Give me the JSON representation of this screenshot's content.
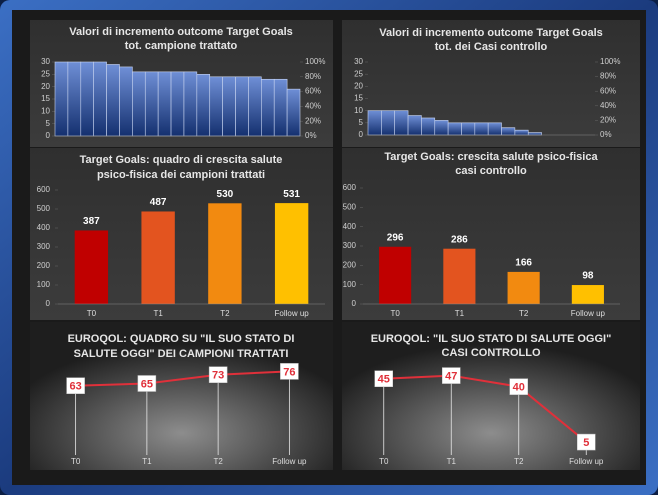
{
  "chart_data": [
    {
      "type": "histbar",
      "title": "Valori di incremento outcome Target Goals",
      "subtitle": "tot. campione trattato",
      "color": "#2b4f9e",
      "values": [
        30,
        30,
        30,
        30,
        29,
        28,
        26,
        26,
        26,
        26,
        26,
        25,
        24,
        24,
        24,
        24,
        23,
        23,
        19
      ],
      "ylim": [
        0,
        30
      ],
      "yticks": [
        0,
        5,
        10,
        15,
        20,
        25,
        30
      ],
      "y2lim": [
        0,
        100
      ],
      "y2ticks": [
        {
          "value": 0,
          "label": "0%"
        },
        {
          "value": 20,
          "label": "20%"
        },
        {
          "value": 40,
          "label": "40%"
        },
        {
          "value": 60,
          "label": "60%"
        },
        {
          "value": 80,
          "label": "80%"
        },
        {
          "value": 100,
          "label": "100%"
        }
      ]
    },
    {
      "type": "histbar",
      "title": "Valori di incremento outcome Target Goals",
      "subtitle": "tot. dei Casi  controllo",
      "color": "#2b4f9e",
      "values": [
        10,
        10,
        10,
        8,
        7,
        6,
        5,
        5,
        5,
        5,
        3,
        2,
        1,
        0,
        0,
        0,
        0
      ],
      "ylim": [
        0,
        30
      ],
      "yticks": [
        0,
        5,
        10,
        15,
        20,
        25,
        30
      ],
      "y2lim": [
        0,
        100
      ],
      "y2ticks": [
        {
          "value": 0,
          "label": "0%"
        },
        {
          "value": 20,
          "label": "20%"
        },
        {
          "value": 40,
          "label": "40%"
        },
        {
          "value": 60,
          "label": "60%"
        },
        {
          "value": 80,
          "label": "80%"
        },
        {
          "value": 100,
          "label": "100%"
        }
      ]
    },
    {
      "type": "bar",
      "title": "Target Goals: quadro di crescita salute",
      "subtitle": "psico-fisica dei campioni trattati",
      "categories": [
        "T0",
        "T1",
        "T2",
        "Follow up"
      ],
      "values": [
        387,
        487,
        530,
        531
      ],
      "colors": [
        "#c00000",
        "#e3541f",
        "#f28a10",
        "#ffc000"
      ],
      "ylim": [
        0,
        600
      ],
      "yticks": [
        0,
        100,
        200,
        300,
        400,
        500,
        600
      ]
    },
    {
      "type": "bar",
      "title": "Target Goals: crescita salute psico-fisica",
      "subtitle": "casi controllo",
      "categories": [
        "T0",
        "T1",
        "T2",
        "Follow up"
      ],
      "values": [
        296,
        286,
        166,
        98
      ],
      "colors": [
        "#c00000",
        "#e3541f",
        "#f28a10",
        "#ffc000"
      ],
      "ylim": [
        0,
        600
      ],
      "yticks": [
        0,
        100,
        200,
        300,
        400,
        500,
        600
      ]
    },
    {
      "type": "line",
      "title": "EUROQOL:  QUADRO SU \"IL SUO STATO DI",
      "subtitle": "SALUTE OGGI\" DEI CAMPIONI TRATTATI",
      "categories": [
        "T0",
        "T1",
        "T2",
        "Follow up"
      ],
      "values": [
        63,
        65,
        73,
        76
      ],
      "color": "#e0303a",
      "ylim": [
        0,
        100
      ]
    },
    {
      "type": "line",
      "title": "EUROQOL: \"IL SUO STATO DI SALUTE OGGI\"",
      "subtitle": "CASI CONTROLLO",
      "categories": [
        "T0",
        "T1",
        "T2",
        "Follow up"
      ],
      "values": [
        45,
        47,
        40,
        5
      ],
      "color": "#e0303a",
      "ylim": [
        0,
        60
      ]
    }
  ]
}
